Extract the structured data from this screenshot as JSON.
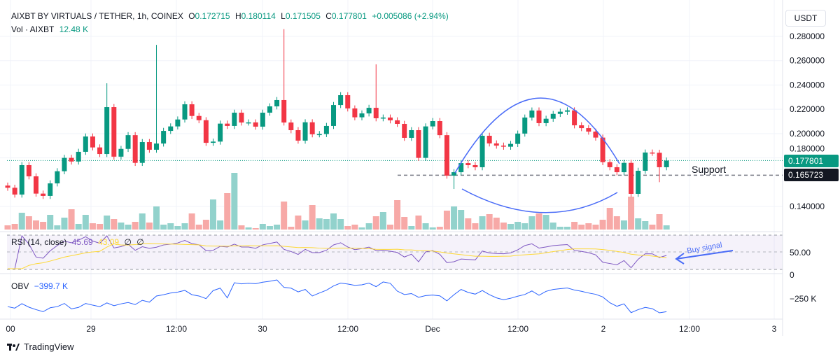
{
  "header": {
    "symbol": "AIXBT BY VIRTUALS / TETHER, 1h, COINEX",
    "open_label": "O",
    "open": "0.172715",
    "high_label": "H",
    "high": "0.180114",
    "low_label": "L",
    "low": "0.171505",
    "close_label": "C",
    "close": "0.177801",
    "change": "+0.005086 (+2.94%)",
    "vol_label": "Vol · AIXBT",
    "vol_value": "12.48 K"
  },
  "currency": "USDT",
  "price_axis": [
    "0.280000",
    "0.260000",
    "0.240000",
    "0.220000",
    "0.200000",
    "0.180000",
    "0.140000"
  ],
  "price_badges": {
    "last": "0.177801",
    "support": "0.165723"
  },
  "annotations": {
    "support": "Support",
    "buy_signal": "Buy signal"
  },
  "rsi": {
    "label": "RSI (14, close)",
    "value": "45.69",
    "ma_value": "43.09",
    "extra1": "∅",
    "extra2": "∅",
    "axis": "50.00"
  },
  "obv": {
    "label": "OBV",
    "value": "−399.7 K",
    "axis_zero": "0",
    "axis_neg": "−250 K"
  },
  "time_axis": [
    "00",
    "29",
    "12:00",
    "30",
    "12:00",
    "Dec",
    "12:00",
    "2",
    "12:00",
    "3"
  ],
  "footer": {
    "brand": "TradingView"
  },
  "colors": {
    "up": "#089981",
    "down": "#f23645",
    "up_vol": "#92d2cc",
    "down_vol": "#f7a9a7",
    "rsi": "#7e57c2",
    "rsi_ma": "#fdd835",
    "obv": "#2962ff",
    "drawing": "#4a6cf7"
  },
  "chart_data": {
    "type": "candlestick",
    "price_range": [
      0.13,
      0.29
    ],
    "closes": [
      0.1554,
      0.1498,
      0.174,
      0.1648,
      0.1506,
      0.1487,
      0.159,
      0.169,
      0.18,
      0.177,
      0.185,
      0.1976,
      0.1886,
      0.1832,
      0.2218,
      0.181,
      0.1874,
      0.1987,
      0.1759,
      0.193,
      0.1867,
      0.1918,
      0.2022,
      0.2059,
      0.2116,
      0.2241,
      0.2145,
      0.211,
      0.1924,
      0.1934,
      0.2082,
      0.2063,
      0.2172,
      0.2091,
      0.2092,
      0.2057,
      0.2172,
      0.2224,
      0.2276,
      0.2091,
      0.2028,
      0.1942,
      0.2093,
      0.1994,
      0.1996,
      0.2063,
      0.2235,
      0.2316,
      0.2207,
      0.2134,
      0.2166,
      0.2212,
      0.2126,
      0.2132,
      0.2109,
      0.208,
      0.1965,
      0.2028,
      0.18,
      0.2059,
      0.2103,
      0.1987,
      0.1654,
      0.1682,
      0.1757,
      0.174,
      0.1723,
      0.1982,
      0.1919,
      0.1901,
      0.1892,
      0.1915,
      0.2,
      0.2132,
      0.219,
      0.2086,
      0.2122,
      0.2162,
      0.218,
      0.2191,
      0.2068,
      0.2045,
      0.2016,
      0.1967,
      0.1765,
      0.1723,
      0.1682,
      0.1759,
      0.1504,
      0.1694,
      0.1844,
      0.1842,
      0.1723,
      0.1778
    ],
    "first_open": 0.1572,
    "spikes": {
      "14": 0.2414,
      "21": 0.273,
      "39": 0.286,
      "52": 0.257,
      "63": 0.1544,
      "92": 0.16
    },
    "volumes": [
      6,
      8,
      24,
      19,
      13,
      11,
      21,
      6,
      17,
      29,
      8,
      21,
      9,
      8,
      20,
      15,
      10,
      7,
      11,
      23,
      10,
      33,
      7,
      9,
      5,
      9,
      23,
      7,
      14,
      43,
      13,
      52,
      81,
      6,
      3,
      2,
      8,
      5,
      7,
      40,
      4,
      20,
      13,
      35,
      16,
      15,
      23,
      15,
      5,
      7,
      3,
      9,
      19,
      25,
      7,
      42,
      18,
      5,
      20,
      9,
      3,
      4,
      27,
      33,
      28,
      16,
      9,
      19,
      22,
      17,
      10,
      8,
      11,
      9,
      19,
      23,
      21,
      10,
      4,
      4,
      11,
      7,
      9,
      7,
      14,
      31,
      19,
      13,
      47,
      16,
      12,
      7,
      22,
      6
    ],
    "support_level": 0.165723,
    "last_price": 0.177801
  }
}
